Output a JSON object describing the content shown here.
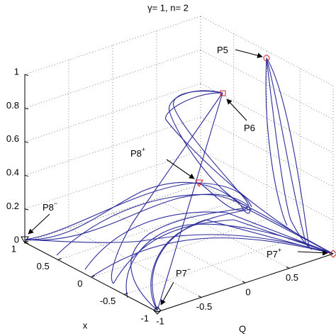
{
  "chart_data": {
    "type": "3d-line",
    "title": "γ= 1,  n= 2",
    "xlabel": "x",
    "ylabel": "Q",
    "xlim": [
      -1,
      1
    ],
    "ylim": [
      -1,
      1
    ],
    "zlim": [
      0,
      1
    ],
    "xticks": [
      -1,
      -0.5,
      0,
      0.5,
      1
    ],
    "yticks": [
      -1,
      -0.5,
      0,
      0.5
    ],
    "zticks": [
      0,
      0.2,
      0.4,
      0.6,
      0.8,
      1
    ],
    "grid": true,
    "annotations": [
      {
        "text": "P5"
      },
      {
        "text": "P6"
      },
      {
        "text": "P8",
        "sup": "+"
      },
      {
        "text": "P8",
        "sup": "−"
      },
      {
        "text": "P7",
        "sup": "+"
      },
      {
        "text": "P7",
        "sup": "−"
      }
    ]
  }
}
